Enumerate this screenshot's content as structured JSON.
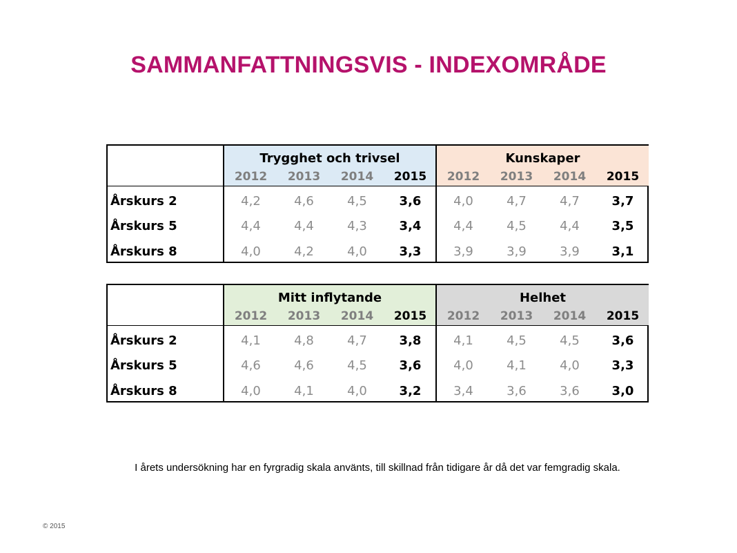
{
  "title": "SAMMANFATTNINGSVIS  - INDEXOMRÅDE",
  "years": [
    "2012",
    "2013",
    "2014",
    "2015"
  ],
  "rows": [
    "Årskurs 2",
    "Årskurs 5",
    "Årskurs 8"
  ],
  "groups": [
    {
      "name": "Trygghet och trivsel",
      "color": "#dceaf5",
      "values": [
        [
          "4,2",
          "4,6",
          "4,5",
          "3,6"
        ],
        [
          "4,4",
          "4,4",
          "4,3",
          "3,4"
        ],
        [
          "4,0",
          "4,2",
          "4,0",
          "3,3"
        ]
      ]
    },
    {
      "name": "Kunskaper",
      "color": "#fbe4d6",
      "values": [
        [
          "4,0",
          "4,7",
          "4,7",
          "3,7"
        ],
        [
          "4,4",
          "4,5",
          "4,4",
          "3,5"
        ],
        [
          "3,9",
          "3,9",
          "3,9",
          "3,1"
        ]
      ]
    },
    {
      "name": "Mitt inflytande",
      "color": "#e2efd9",
      "values": [
        [
          "4,1",
          "4,8",
          "4,7",
          "3,8"
        ],
        [
          "4,6",
          "4,6",
          "4,5",
          "3,6"
        ],
        [
          "4,0",
          "4,1",
          "4,0",
          "3,2"
        ]
      ]
    },
    {
      "name": "Helhet",
      "color": "#d9d9d9",
      "values": [
        [
          "4,1",
          "4,5",
          "4,5",
          "3,6"
        ],
        [
          "4,0",
          "4,1",
          "4,0",
          "3,3"
        ],
        [
          "3,4",
          "3,6",
          "3,6",
          "3,0"
        ]
      ]
    }
  ],
  "note": "I årets undersökning har en fyrgradig skala använts, till skillnad från tidigare år då det var femgradig skala.",
  "copyright": "© 2015"
}
